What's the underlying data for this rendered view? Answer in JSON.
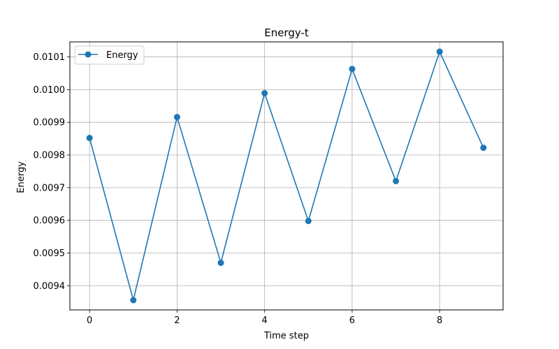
{
  "chart_data": {
    "type": "line",
    "title": "Energy-t",
    "xlabel": "Time step",
    "ylabel": "Energy",
    "x": [
      0,
      1,
      2,
      3,
      4,
      5,
      6,
      7,
      8,
      9
    ],
    "series": [
      {
        "name": "Energy",
        "color": "#1f77b4",
        "marker": "circle",
        "values": [
          0.009852,
          0.009356,
          0.009916,
          0.00947,
          0.009989,
          0.009598,
          0.010063,
          0.00972,
          0.010116,
          0.009822
        ]
      }
    ],
    "xlim": [
      -0.45,
      9.45
    ],
    "ylim": [
      0.009326,
      0.010146
    ],
    "xticks": [
      0,
      2,
      4,
      6,
      8
    ],
    "xtick_labels": [
      "0",
      "2",
      "4",
      "6",
      "8"
    ],
    "yticks": [
      0.0094,
      0.0095,
      0.0096,
      0.0097,
      0.0098,
      0.0099,
      0.01,
      0.0101
    ],
    "ytick_labels": [
      "0.0094",
      "0.0095",
      "0.0096",
      "0.0097",
      "0.0098",
      "0.0099",
      "0.0100",
      "0.0101"
    ],
    "grid": true,
    "legend_position": "top-left"
  }
}
